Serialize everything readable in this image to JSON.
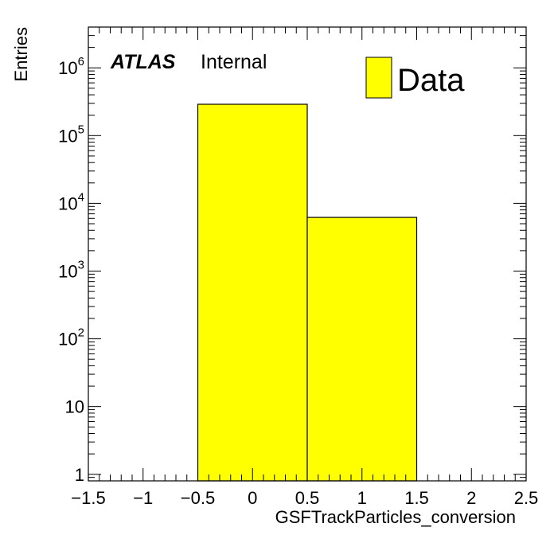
{
  "chart_data": {
    "type": "bar",
    "histogram": true,
    "bins": [
      {
        "low": -0.5,
        "high": 0.5,
        "value": 290000
      },
      {
        "low": 0.5,
        "high": 1.5,
        "value": 6200
      }
    ],
    "xlabel": "GSFTrackParticles_conversion",
    "ylabel": "Entries",
    "xlim": [
      -1.5,
      2.5
    ],
    "ylim": [
      0.8,
      4000000
    ],
    "yscale": "log",
    "grid": false,
    "x_ticks": [
      "−1.5",
      "−1",
      "−0.5",
      "0",
      "0.5",
      "1",
      "1.5",
      "2",
      "2.5"
    ],
    "y_ticks": [
      {
        "value": 1,
        "base": "1",
        "exp": ""
      },
      {
        "value": 10,
        "base": "10",
        "exp": ""
      },
      {
        "value": 100,
        "base": "10",
        "exp": "2"
      },
      {
        "value": 1000,
        "base": "10",
        "exp": "3"
      },
      {
        "value": 10000,
        "base": "10",
        "exp": "4"
      },
      {
        "value": 100000,
        "base": "10",
        "exp": "5"
      },
      {
        "value": 1000000,
        "base": "10",
        "exp": "6"
      }
    ],
    "fill_color": "#ffff00",
    "line_color": "#000000",
    "legend": {
      "entries": [
        "Data"
      ],
      "position": "top-right"
    },
    "labels": {
      "experiment": "ATLAS",
      "status": "Internal"
    }
  }
}
